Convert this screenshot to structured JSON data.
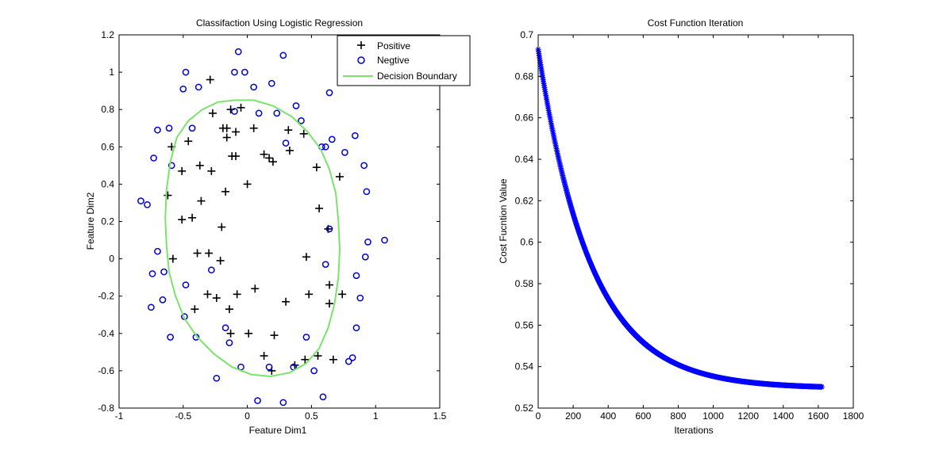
{
  "chart_data": [
    {
      "type": "scatter",
      "title": "Classifaction Using Logistic Regression",
      "xlabel": "Feature Dim1",
      "ylabel": "Feature Dim2",
      "xlim": [
        -1,
        1.5
      ],
      "ylim": [
        -0.8,
        1.2
      ],
      "xticks": [
        "-1",
        "-0.5",
        "0",
        "0.5",
        "1",
        "1.5"
      ],
      "yticks": [
        "-0.8",
        "-0.6",
        "-0.4",
        "-0.2",
        "0",
        "0.2",
        "0.4",
        "0.6",
        "0.8",
        "1",
        "1.2"
      ],
      "legend": {
        "placement": "top-right",
        "entries": [
          "Positive",
          "Negtive",
          "Decision Boundary"
        ]
      },
      "colors": {
        "positive": "#000000",
        "negative": "#0000cc",
        "boundary": "#7be36b"
      },
      "positive": [
        [
          -0.29,
          0.96
        ],
        [
          -0.13,
          0.8
        ],
        [
          -0.05,
          0.81
        ],
        [
          -0.27,
          0.78
        ],
        [
          -0.19,
          0.7
        ],
        [
          -0.16,
          0.7
        ],
        [
          0.05,
          0.7
        ],
        [
          -0.09,
          0.68
        ],
        [
          0.13,
          0.56
        ],
        [
          0.32,
          0.69
        ],
        [
          -0.16,
          0.65
        ],
        [
          0.44,
          0.67
        ],
        [
          -0.46,
          0.63
        ],
        [
          -0.59,
          0.6
        ],
        [
          0.33,
          0.58
        ],
        [
          -0.12,
          0.55
        ],
        [
          -0.09,
          0.55
        ],
        [
          0.17,
          0.54
        ],
        [
          0.2,
          0.52
        ],
        [
          -0.37,
          0.5
        ],
        [
          -0.51,
          0.47
        ],
        [
          -0.28,
          0.47
        ],
        [
          0.54,
          0.49
        ],
        [
          0.72,
          0.44
        ],
        [
          -0.17,
          0.36
        ],
        [
          0.0,
          0.4
        ],
        [
          -0.62,
          0.34
        ],
        [
          -0.36,
          0.31
        ],
        [
          -0.43,
          0.22
        ],
        [
          -0.51,
          0.21
        ],
        [
          0.56,
          0.27
        ],
        [
          -0.2,
          0.17
        ],
        [
          0.63,
          0.16
        ],
        [
          -0.39,
          0.03
        ],
        [
          -0.3,
          0.03
        ],
        [
          -0.58,
          0.0
        ],
        [
          -0.21,
          -0.01
        ],
        [
          0.46,
          0.01
        ],
        [
          0.64,
          -0.14
        ],
        [
          0.06,
          -0.16
        ],
        [
          -0.31,
          -0.19
        ],
        [
          0.74,
          -0.19
        ],
        [
          -0.08,
          -0.19
        ],
        [
          -0.24,
          -0.21
        ],
        [
          0.3,
          -0.23
        ],
        [
          0.48,
          -0.19
        ],
        [
          0.64,
          -0.24
        ],
        [
          -0.14,
          -0.27
        ],
        [
          -0.41,
          -0.27
        ],
        [
          0.01,
          -0.4
        ],
        [
          -0.13,
          -0.4
        ],
        [
          0.21,
          -0.41
        ],
        [
          0.13,
          -0.52
        ],
        [
          0.55,
          -0.52
        ],
        [
          0.45,
          -0.54
        ],
        [
          0.67,
          -0.54
        ],
        [
          0.37,
          -0.57
        ],
        [
          0.19,
          -0.6
        ]
      ],
      "negative": [
        [
          -0.07,
          1.11
        ],
        [
          0.28,
          1.09
        ],
        [
          -0.48,
          1.0
        ],
        [
          -0.1,
          1.0
        ],
        [
          -0.02,
          1.0
        ],
        [
          -0.38,
          0.92
        ],
        [
          0.05,
          0.92
        ],
        [
          0.19,
          0.94
        ],
        [
          -0.5,
          0.91
        ],
        [
          0.64,
          0.89
        ],
        [
          0.38,
          0.82
        ],
        [
          0.09,
          0.78
        ],
        [
          -0.7,
          0.69
        ],
        [
          0.58,
          0.6
        ],
        [
          -0.1,
          0.79
        ],
        [
          0.23,
          0.78
        ],
        [
          0.42,
          0.74
        ],
        [
          -0.61,
          0.7
        ],
        [
          -0.43,
          0.7
        ],
        [
          0.84,
          0.66
        ],
        [
          0.66,
          0.64
        ],
        [
          0.3,
          0.62
        ],
        [
          0.61,
          0.6
        ],
        [
          -0.73,
          0.54
        ],
        [
          0.76,
          0.57
        ],
        [
          -0.59,
          0.5
        ],
        [
          0.91,
          0.5
        ],
        [
          0.93,
          0.36
        ],
        [
          -0.83,
          0.31
        ],
        [
          -0.78,
          0.29
        ],
        [
          0.94,
          0.09
        ],
        [
          0.64,
          0.16
        ],
        [
          1.07,
          0.1
        ],
        [
          -0.7,
          0.04
        ],
        [
          0.92,
          0.01
        ],
        [
          0.61,
          -0.03
        ],
        [
          -0.65,
          -0.07
        ],
        [
          -0.74,
          -0.08
        ],
        [
          -0.28,
          -0.06
        ],
        [
          0.85,
          -0.09
        ],
        [
          -0.48,
          -0.14
        ],
        [
          0.88,
          -0.21
        ],
        [
          -0.66,
          -0.22
        ],
        [
          -0.75,
          -0.26
        ],
        [
          -0.49,
          -0.31
        ],
        [
          -0.17,
          -0.37
        ],
        [
          0.85,
          -0.37
        ],
        [
          -0.6,
          -0.42
        ],
        [
          -0.4,
          -0.42
        ],
        [
          -0.14,
          -0.45
        ],
        [
          0.46,
          -0.42
        ],
        [
          0.82,
          -0.53
        ],
        [
          0.79,
          -0.55
        ],
        [
          0.36,
          -0.58
        ],
        [
          -0.05,
          -0.58
        ],
        [
          0.17,
          -0.58
        ],
        [
          0.52,
          -0.6
        ],
        [
          -0.24,
          -0.64
        ],
        [
          0.08,
          -0.76
        ],
        [
          0.28,
          -0.77
        ],
        [
          0.59,
          -0.74
        ]
      ],
      "decision_boundary": [
        [
          -0.1,
          0.85
        ],
        [
          0.05,
          0.85
        ],
        [
          0.2,
          0.82
        ],
        [
          0.35,
          0.76
        ],
        [
          0.47,
          0.68
        ],
        [
          0.57,
          0.59
        ],
        [
          0.64,
          0.48
        ],
        [
          0.69,
          0.35
        ],
        [
          0.71,
          0.2
        ],
        [
          0.72,
          0.05
        ],
        [
          0.71,
          -0.1
        ],
        [
          0.68,
          -0.24
        ],
        [
          0.63,
          -0.37
        ],
        [
          0.56,
          -0.48
        ],
        [
          0.46,
          -0.56
        ],
        [
          0.33,
          -0.61
        ],
        [
          0.18,
          -0.63
        ],
        [
          0.03,
          -0.62
        ],
        [
          -0.12,
          -0.58
        ],
        [
          -0.26,
          -0.51
        ],
        [
          -0.39,
          -0.42
        ],
        [
          -0.49,
          -0.32
        ],
        [
          -0.56,
          -0.2
        ],
        [
          -0.61,
          -0.07
        ],
        [
          -0.63,
          0.07
        ],
        [
          -0.64,
          0.22
        ],
        [
          -0.63,
          0.37
        ],
        [
          -0.6,
          0.52
        ],
        [
          -0.55,
          0.65
        ],
        [
          -0.46,
          0.74
        ],
        [
          -0.35,
          0.8
        ],
        [
          -0.23,
          0.84
        ],
        [
          -0.1,
          0.85
        ]
      ]
    },
    {
      "type": "line",
      "title": "Cost Function Iteration",
      "xlabel": "Iterations",
      "ylabel": "Cost Fucntion Value",
      "xlim": [
        0,
        1800
      ],
      "ylim": [
        0.52,
        0.7
      ],
      "xticks": [
        "0",
        "200",
        "400",
        "600",
        "800",
        "1000",
        "1200",
        "1400",
        "1600",
        "1800"
      ],
      "yticks": [
        "0.52",
        "0.54",
        "0.56",
        "0.58",
        "0.6",
        "0.62",
        "0.64",
        "0.66",
        "0.68",
        "0.7"
      ],
      "marker": "star",
      "color": "#0000ff",
      "curve": {
        "iterations": 1620,
        "start": 0.6931,
        "asymptote": 0.5295,
        "decay_per_iteration": 0.00333
      },
      "x": [
        0,
        100,
        200,
        300,
        400,
        500,
        600,
        700,
        800,
        900,
        1000,
        1100,
        1200,
        1300,
        1400,
        1500,
        1620
      ],
      "y": [
        0.693,
        0.647,
        0.613,
        0.589,
        0.572,
        0.56,
        0.551,
        0.545,
        0.541,
        0.537,
        0.535,
        0.534,
        0.533,
        0.532,
        0.531,
        0.531,
        0.53
      ]
    }
  ]
}
